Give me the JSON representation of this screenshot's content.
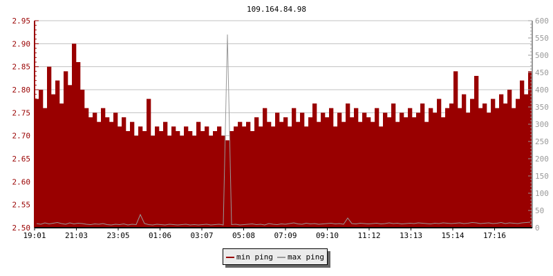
{
  "chart_data": {
    "type": "bar",
    "title": "109.164.84.98",
    "x_start": "19:01",
    "interval_minutes": 12,
    "x_tick_labels": [
      "19:01",
      "21:03",
      "23:05",
      "01:06",
      "03:07",
      "05:08",
      "07:09",
      "09:10",
      "11:12",
      "13:13",
      "15:14",
      "17:16"
    ],
    "x_tick_interval_minutes": 121,
    "y_left": {
      "ylim": [
        2.5,
        2.95
      ],
      "ticks": [
        "2.50",
        "2.55",
        "2.60",
        "2.65",
        "2.70",
        "2.75",
        "2.80",
        "2.85",
        "2.90",
        "2.95"
      ]
    },
    "y_right": {
      "ylim": [
        0,
        600
      ],
      "ticks": [
        "0",
        "50",
        "100",
        "150",
        "200",
        "250",
        "300",
        "350",
        "400",
        "450",
        "500",
        "550",
        "600"
      ]
    },
    "grid": true,
    "legend_placement": "bottom",
    "series": [
      {
        "name": "min ping",
        "axis": "left",
        "color": "#990000",
        "values": [
          2.78,
          2.8,
          2.76,
          2.85,
          2.79,
          2.82,
          2.77,
          2.84,
          2.81,
          2.9,
          2.86,
          2.8,
          2.76,
          2.74,
          2.75,
          2.73,
          2.76,
          2.74,
          2.73,
          2.75,
          2.72,
          2.74,
          2.71,
          2.73,
          2.7,
          2.72,
          2.71,
          2.78,
          2.7,
          2.72,
          2.71,
          2.73,
          2.7,
          2.72,
          2.71,
          2.7,
          2.72,
          2.71,
          2.7,
          2.73,
          2.71,
          2.72,
          2.7,
          2.71,
          2.72,
          2.7,
          2.69,
          2.71,
          2.72,
          2.73,
          2.72,
          2.73,
          2.71,
          2.74,
          2.72,
          2.76,
          2.73,
          2.72,
          2.75,
          2.73,
          2.74,
          2.72,
          2.76,
          2.73,
          2.75,
          2.72,
          2.74,
          2.77,
          2.73,
          2.75,
          2.74,
          2.76,
          2.72,
          2.75,
          2.73,
          2.77,
          2.74,
          2.76,
          2.73,
          2.75,
          2.74,
          2.73,
          2.76,
          2.72,
          2.75,
          2.74,
          2.77,
          2.73,
          2.75,
          2.74,
          2.76,
          2.74,
          2.75,
          2.77,
          2.73,
          2.76,
          2.75,
          2.78,
          2.74,
          2.76,
          2.77,
          2.84,
          2.76,
          2.79,
          2.75,
          2.78,
          2.83,
          2.76,
          2.77,
          2.75,
          2.78,
          2.76,
          2.79,
          2.77,
          2.8,
          2.76,
          2.78,
          2.82,
          2.79,
          2.84
        ]
      },
      {
        "name": "max ping",
        "axis": "right",
        "color": "#999999",
        "values": [
          12,
          10,
          14,
          11,
          13,
          15,
          12,
          10,
          14,
          11,
          13,
          12,
          10,
          9,
          11,
          10,
          12,
          9,
          8,
          10,
          9,
          11,
          8,
          10,
          9,
          38,
          12,
          9,
          8,
          10,
          9,
          8,
          10,
          9,
          8,
          9,
          10,
          8,
          9,
          8,
          9,
          10,
          8,
          9,
          10,
          8,
          560,
          9,
          10,
          8,
          9,
          10,
          11,
          9,
          10,
          8,
          12,
          10,
          9,
          11,
          10,
          12,
          14,
          11,
          10,
          13,
          11,
          12,
          10,
          11,
          12,
          13,
          11,
          12,
          10,
          28,
          12,
          11,
          13,
          12,
          11,
          12,
          13,
          11,
          12,
          14,
          12,
          13,
          11,
          12,
          13,
          12,
          14,
          13,
          12,
          11,
          13,
          12,
          14,
          13,
          12,
          13,
          14,
          12,
          13,
          15,
          14,
          12,
          13,
          14,
          12,
          13,
          15,
          12,
          14,
          13,
          12,
          14,
          15,
          16
        ]
      }
    ]
  }
}
